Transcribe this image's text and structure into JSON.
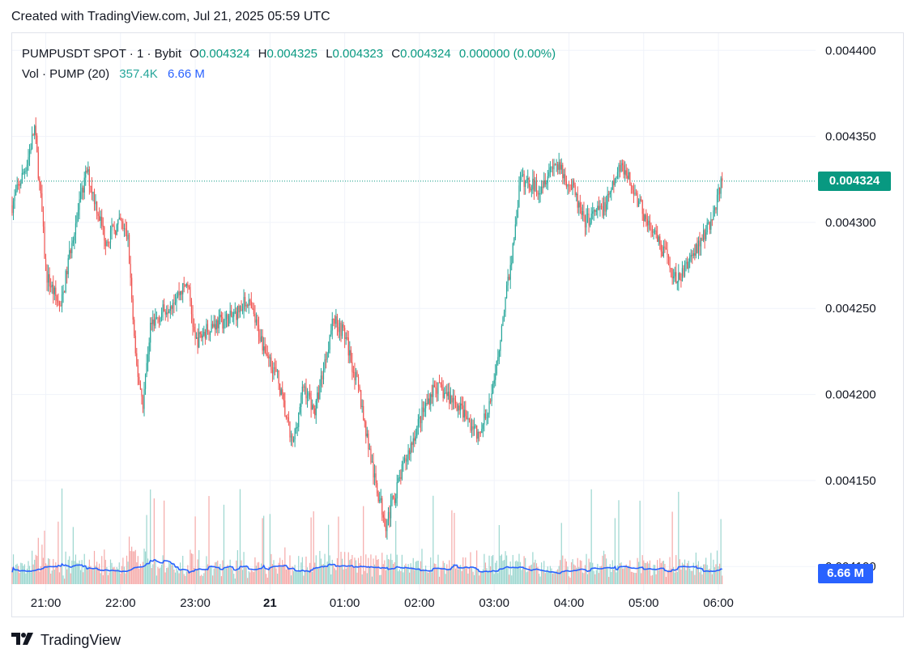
{
  "header": {
    "text": "Created with TradingView.com, Jul 21, 2025 05:59 UTC"
  },
  "legend": {
    "symbol": "PUMPUSDT SPOT · 1 · Bybit",
    "open_label": "O",
    "open": "0.004324",
    "high_label": "H",
    "high": "0.004325",
    "low_label": "L",
    "low": "0.004323",
    "close_label": "C",
    "close": "0.004324",
    "change": "0.000000 (0.00%)",
    "vol_label": "Vol · PUMP (20)",
    "vol_value": "357.4K",
    "vol_ma": "6.66 M"
  },
  "tags": {
    "last_price": "0.004324",
    "volume_ma": "6.66 M"
  },
  "colors": {
    "up": "#26a69a",
    "down": "#ef5350",
    "up_vol": "#9bd6cf",
    "down_vol": "#f5a9a8",
    "ma": "#2962ff",
    "last_price": "#089981",
    "grid": "#f0f3fa",
    "axis_text": "#131722"
  },
  "footer": {
    "brand": "TradingView"
  },
  "chart_data": {
    "type": "candlestick",
    "interval": "1 minute",
    "y_ticks": [
      "0.004400",
      "0.004350",
      "0.004300",
      "0.004250",
      "0.004200",
      "0.004150",
      "0.004100"
    ],
    "ylim": [
      0.004086,
      0.00441
    ],
    "x_ticks": [
      "21:00",
      "22:00",
      "23:00",
      "21",
      "01:00",
      "02:00",
      "03:00",
      "04:00",
      "05:00",
      "06:00"
    ],
    "x_tick_hours": [
      21,
      22,
      23,
      24,
      25,
      26,
      27,
      28,
      29,
      30
    ],
    "x_range_hours": [
      20.55,
      31.3
    ],
    "last_price": 0.004324,
    "price_path": [
      [
        20.55,
        0.00431
      ],
      [
        20.75,
        0.004335
      ],
      [
        20.85,
        0.004355
      ],
      [
        20.95,
        0.004305
      ],
      [
        21.0,
        0.00427
      ],
      [
        21.2,
        0.00425
      ],
      [
        21.35,
        0.00429
      ],
      [
        21.55,
        0.00433
      ],
      [
        21.8,
        0.00429
      ],
      [
        22.0,
        0.0043
      ],
      [
        22.1,
        0.00429
      ],
      [
        22.2,
        0.00422
      ],
      [
        22.3,
        0.004195
      ],
      [
        22.4,
        0.00424
      ],
      [
        22.6,
        0.00425
      ],
      [
        22.9,
        0.004265
      ],
      [
        23.0,
        0.00423
      ],
      [
        23.2,
        0.00424
      ],
      [
        23.5,
        0.004245
      ],
      [
        23.7,
        0.004255
      ],
      [
        23.9,
        0.00423
      ],
      [
        24.1,
        0.00421
      ],
      [
        24.3,
        0.00417
      ],
      [
        24.45,
        0.004205
      ],
      [
        24.6,
        0.00419
      ],
      [
        24.85,
        0.004245
      ],
      [
        25.0,
        0.004235
      ],
      [
        25.2,
        0.0042
      ],
      [
        25.4,
        0.00415
      ],
      [
        25.55,
        0.004125
      ],
      [
        25.8,
        0.00416
      ],
      [
        26.0,
        0.004185
      ],
      [
        26.2,
        0.004205
      ],
      [
        26.5,
        0.004195
      ],
      [
        26.8,
        0.004175
      ],
      [
        27.0,
        0.004205
      ],
      [
        27.1,
        0.00424
      ],
      [
        27.25,
        0.004285
      ],
      [
        27.35,
        0.004325
      ],
      [
        27.6,
        0.00432
      ],
      [
        27.8,
        0.004335
      ],
      [
        28.05,
        0.00432
      ],
      [
        28.2,
        0.0043
      ],
      [
        28.5,
        0.00431
      ],
      [
        28.7,
        0.004335
      ],
      [
        28.9,
        0.004315
      ],
      [
        29.1,
        0.004295
      ],
      [
        29.3,
        0.00428
      ],
      [
        29.45,
        0.004265
      ],
      [
        29.7,
        0.004285
      ],
      [
        29.9,
        0.0043
      ],
      [
        30.05,
        0.004324
      ]
    ]
  }
}
